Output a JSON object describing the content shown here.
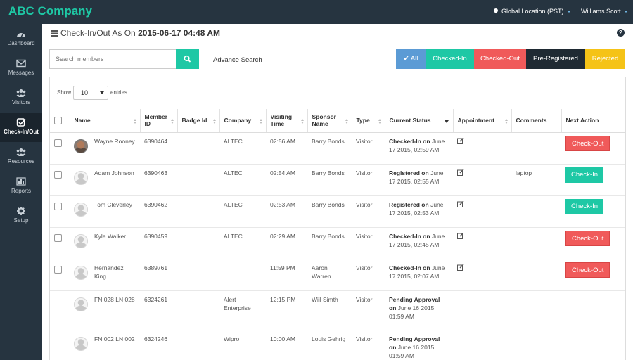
{
  "app": {
    "brand": "ABC Company",
    "location": "Global Location (PST)",
    "user": "Williams Scott"
  },
  "sidebar": {
    "items": [
      {
        "label": "Dashboard",
        "icon": "dashboard-icon"
      },
      {
        "label": "Messages",
        "icon": "envelope-icon"
      },
      {
        "label": "Visitors",
        "icon": "users-icon"
      },
      {
        "label": "Check-In/Out",
        "icon": "check-square-icon",
        "active": true
      },
      {
        "label": "Resources",
        "icon": "users-icon"
      },
      {
        "label": "Reports",
        "icon": "bar-chart-icon"
      },
      {
        "label": "Setup",
        "icon": "gear-icon"
      }
    ]
  },
  "header": {
    "title_prefix": "Check-In/Out As On",
    "title_date": "2015-06-17 04:48 AM"
  },
  "search": {
    "placeholder": "Search members",
    "advanced_label": "Advance Search"
  },
  "filters": {
    "all": "All",
    "checked_in": "Checked-In",
    "checked_out": "Checked-Out",
    "pre_registered": "Pre-Registered",
    "rejected": "Rejected"
  },
  "paging": {
    "show": "Show",
    "value": "10",
    "entries": "entries"
  },
  "table": {
    "columns": [
      "Name",
      "Member ID",
      "Badge Id",
      "Company",
      "Visiting Time",
      "Sponsor Name",
      "Type",
      "Current Status",
      "Appointment",
      "Comments",
      "Next Action"
    ],
    "rows": [
      {
        "name": "Wayne Rooney",
        "member_id": "6390464",
        "badge_id": "",
        "company": "ALTEC",
        "time": "02:56 AM",
        "sponsor": "Barry Bonds",
        "type": "Visitor",
        "status": "Checked-In on",
        "status_date": "June 17 2015, 02:59 AM",
        "comments": "",
        "action": "Check-Out"
      },
      {
        "name": "Adam Johnson",
        "member_id": "6390463",
        "badge_id": "",
        "company": "ALTEC",
        "time": "02:54 AM",
        "sponsor": "Barry Bonds",
        "type": "Visitor",
        "status": "Registered on",
        "status_date": "June 17 2015, 02:55 AM",
        "comments": "laptop",
        "action": "Check-In"
      },
      {
        "name": "Tom Cleverley",
        "member_id": "6390462",
        "badge_id": "",
        "company": "ALTEC",
        "time": "02:53 AM",
        "sponsor": "Barry Bonds",
        "type": "Visitor",
        "status": "Registered on",
        "status_date": "June 17 2015, 02:53 AM",
        "comments": "",
        "action": "Check-In"
      },
      {
        "name": "Kyle Walker",
        "member_id": "6390459",
        "badge_id": "",
        "company": "ALTEC",
        "time": "02:29 AM",
        "sponsor": "Barry Bonds",
        "type": "Visitor",
        "status": "Checked-In on",
        "status_date": "June 17 2015, 02:45 AM",
        "comments": "",
        "action": "Check-Out"
      },
      {
        "name": "Hernandez King",
        "member_id": "6389761",
        "badge_id": "",
        "company": "",
        "time": "11:59 PM",
        "sponsor": "Aaron Warren",
        "type": "Visitor",
        "status": "Checked-In on",
        "status_date": "June 17 2015, 02:07 AM",
        "comments": "",
        "action": "Check-Out"
      },
      {
        "name": "FN 028 LN 028",
        "member_id": "6324261",
        "badge_id": "",
        "company": "Alert Enterprise",
        "time": "12:15 PM",
        "sponsor": "Wiil Simth",
        "type": "Visitor",
        "status": "Pending Approval on",
        "status_date": "June 16 2015, 01:59 AM",
        "comments": "",
        "action": ""
      },
      {
        "name": "FN 002 LN 002",
        "member_id": "6324246",
        "badge_id": "",
        "company": "Wipro",
        "time": "10:00 AM",
        "sponsor": "Louis Gehrig",
        "type": "Visitor",
        "status": "Pending Approval on",
        "status_date": "June 16 2015, 01:59 AM",
        "comments": "",
        "action": ""
      }
    ]
  },
  "colors": {
    "brand": "#1ec8a5",
    "sidebar": "#263440",
    "checkout": "#f05a5a",
    "checkin": "#1ec8a5",
    "all": "#5b9bd5",
    "rejected": "#f5c317"
  }
}
